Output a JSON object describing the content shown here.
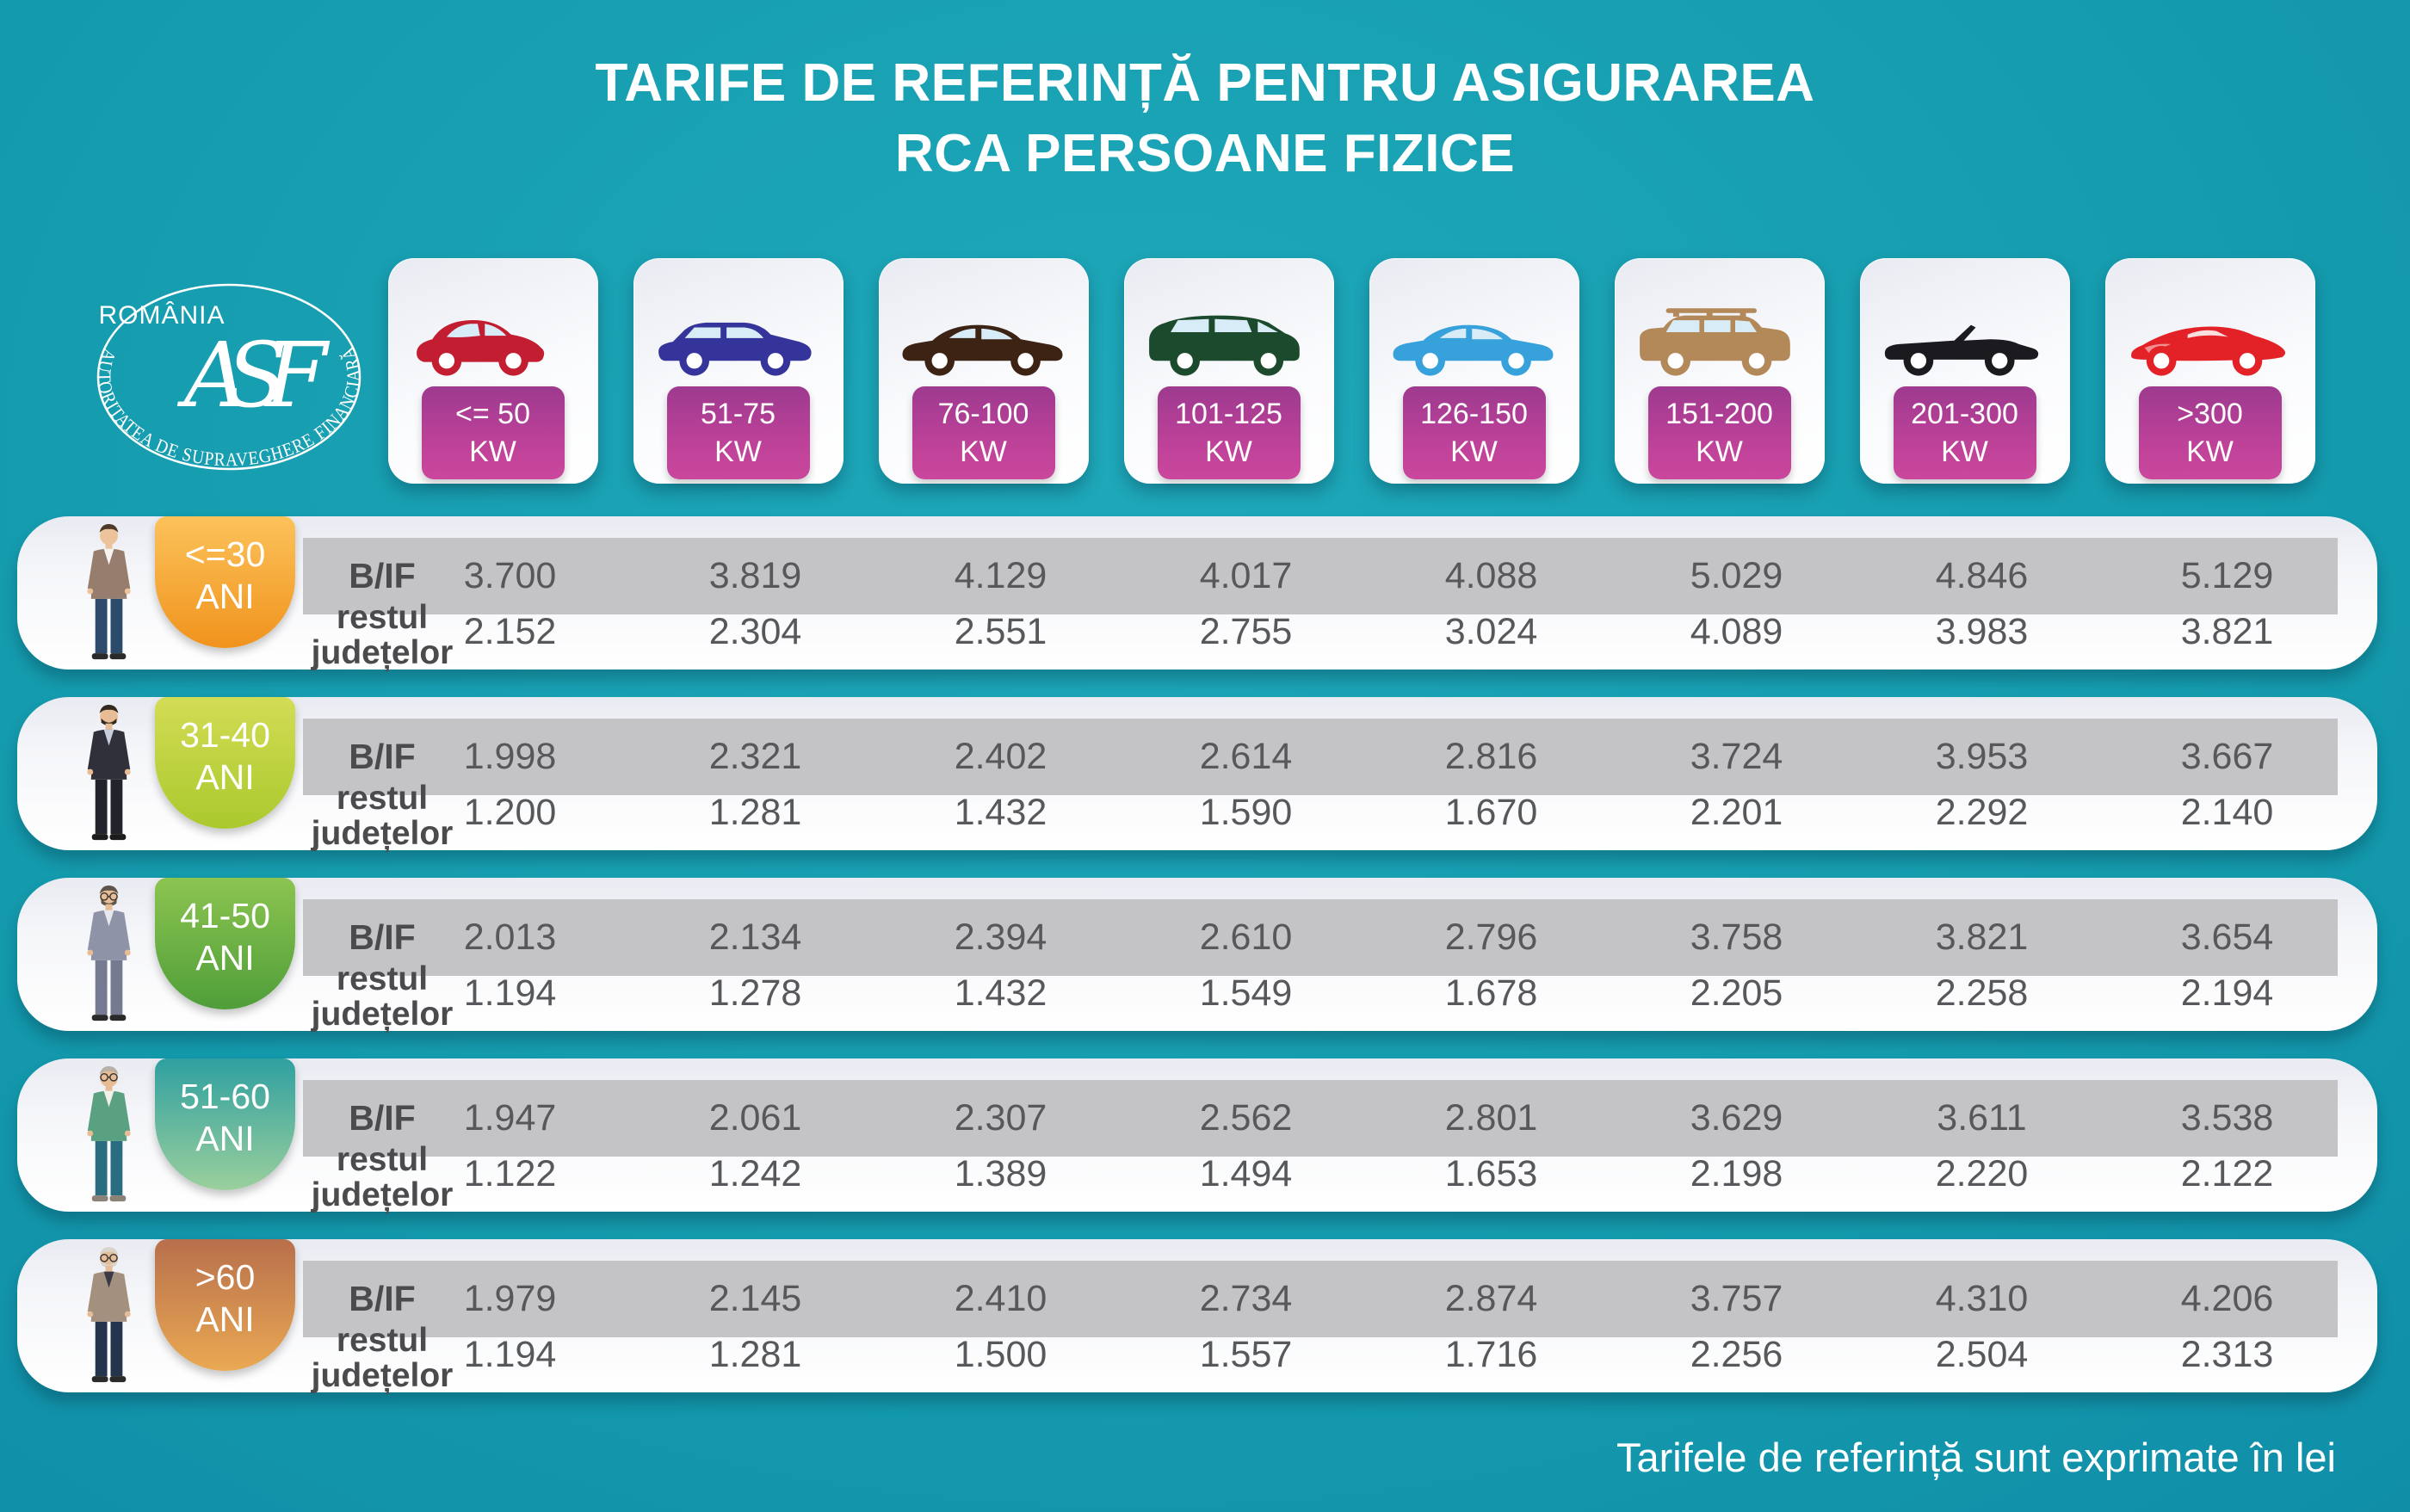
{
  "title": {
    "line1": "TARIFE DE REFERINȚĂ PENTRU ASIGURAREA",
    "line2": "RCA PERSOANE FIZICE"
  },
  "logo": {
    "country": "ROMÂNIA",
    "monogram": "ASF",
    "ring_text": "AUTORITATEA DE SUPRAVEGHERE FINANCIARĂ"
  },
  "columns": [
    {
      "power": "<= 50",
      "unit": "KW",
      "car_icon": "city-car-icon",
      "car_color": "#c21d30"
    },
    {
      "power": "51-75",
      "unit": "KW",
      "car_icon": "crossover-icon",
      "car_color": "#34349b"
    },
    {
      "power": "76-100",
      "unit": "KW",
      "car_icon": "sedan-icon",
      "car_color": "#3c2314"
    },
    {
      "power": "101-125",
      "unit": "KW",
      "car_icon": "minivan-icon",
      "car_color": "#1c4a2c"
    },
    {
      "power": "126-150",
      "unit": "KW",
      "car_icon": "sedan-icon",
      "car_color": "#37a1dc"
    },
    {
      "power": "151-200",
      "unit": "KW",
      "car_icon": "suv-icon",
      "car_color": "#b3895a"
    },
    {
      "power": "201-300",
      "unit": "KW",
      "car_icon": "convertible-icon",
      "car_color": "#1b1b1f"
    },
    {
      "power": ">300",
      "unit": "KW",
      "car_icon": "sports-car-icon",
      "car_color": "#e32227"
    }
  ],
  "row_labels": {
    "bif": "B/IF",
    "rest_line1": "restul",
    "rest_line2": "județelor"
  },
  "age_groups": [
    {
      "age": "<=30",
      "unit": "ANI",
      "person_icon": "young-man-icon",
      "bubble_colors": [
        "#fcc25a",
        "#f0931d"
      ],
      "bif": [
        "3.700",
        "3.819",
        "4.129",
        "4.017",
        "4.088",
        "5.029",
        "4.846",
        "5.129"
      ],
      "rest": [
        "2.152",
        "2.304",
        "2.551",
        "2.755",
        "3.024",
        "4.089",
        "3.983",
        "3.821"
      ]
    },
    {
      "age": "31-40",
      "unit": "ANI",
      "person_icon": "adult-man-icon",
      "bubble_colors": [
        "#d3dc55",
        "#aac92d"
      ],
      "bif": [
        "1.998",
        "2.321",
        "2.402",
        "2.614",
        "2.816",
        "3.724",
        "3.953",
        "3.667"
      ],
      "rest": [
        "1.200",
        "1.281",
        "1.432",
        "1.590",
        "1.670",
        "2.201",
        "2.292",
        "2.140"
      ]
    },
    {
      "age": "41-50",
      "unit": "ANI",
      "person_icon": "middle-aged-man-icon",
      "bubble_colors": [
        "#8cc450",
        "#4f9e39"
      ],
      "bif": [
        "2.013",
        "2.134",
        "2.394",
        "2.610",
        "2.796",
        "3.758",
        "3.821",
        "3.654"
      ],
      "rest": [
        "1.194",
        "1.278",
        "1.432",
        "1.549",
        "1.678",
        "2.205",
        "2.258",
        "2.194"
      ]
    },
    {
      "age": "51-60",
      "unit": "ANI",
      "person_icon": "senior-man-icon",
      "bubble_colors": [
        "#2fa0a0",
        "#9bcf9d"
      ],
      "bif": [
        "1.947",
        "2.061",
        "2.307",
        "2.562",
        "2.801",
        "3.629",
        "3.611",
        "3.538"
      ],
      "rest": [
        "1.122",
        "1.242",
        "1.389",
        "1.494",
        "1.653",
        "2.198",
        "2.220",
        "2.122"
      ]
    },
    {
      "age": ">60",
      "unit": "ANI",
      "person_icon": "elderly-man-icon",
      "bubble_colors": [
        "#b86f4c",
        "#eaa953"
      ],
      "bif": [
        "1.979",
        "2.145",
        "2.410",
        "2.734",
        "2.874",
        "3.757",
        "4.310",
        "4.206"
      ],
      "rest": [
        "1.194",
        "1.281",
        "1.500",
        "1.557",
        "1.716",
        "2.256",
        "2.504",
        "2.313"
      ]
    }
  ],
  "footnote": "Tarifele de referință sunt exprimate în lei",
  "chart_data": {
    "type": "table",
    "title": "TARIFE DE REFERINȚĂ PENTRU ASIGURAREA RCA PERSOANE FIZICE",
    "unit_note": "Tarifele de referință sunt exprimate în lei",
    "columns_kw": [
      "<= 50 KW",
      "51-75 KW",
      "76-100 KW",
      "101-125 KW",
      "126-150 KW",
      "151-200 KW",
      "201-300 KW",
      ">300 KW"
    ],
    "rows": [
      {
        "age": "<=30 ANI",
        "zone": "B/IF",
        "values": [
          3700,
          3819,
          4129,
          4017,
          4088,
          5029,
          4846,
          5129
        ]
      },
      {
        "age": "<=30 ANI",
        "zone": "restul județelor",
        "values": [
          2152,
          2304,
          2551,
          2755,
          3024,
          4089,
          3983,
          3821
        ]
      },
      {
        "age": "31-40 ANI",
        "zone": "B/IF",
        "values": [
          1998,
          2321,
          2402,
          2614,
          2816,
          3724,
          3953,
          3667
        ]
      },
      {
        "age": "31-40 ANI",
        "zone": "restul județelor",
        "values": [
          1200,
          1281,
          1432,
          1590,
          1670,
          2201,
          2292,
          2140
        ]
      },
      {
        "age": "41-50 ANI",
        "zone": "B/IF",
        "values": [
          2013,
          2134,
          2394,
          2610,
          2796,
          3758,
          3821,
          3654
        ]
      },
      {
        "age": "41-50 ANI",
        "zone": "restul județelor",
        "values": [
          1194,
          1278,
          1432,
          1549,
          1678,
          2205,
          2258,
          2194
        ]
      },
      {
        "age": "51-60 ANI",
        "zone": "B/IF",
        "values": [
          1947,
          2061,
          2307,
          2562,
          2801,
          3629,
          3611,
          3538
        ]
      },
      {
        "age": "51-60 ANI",
        "zone": "restul județelor",
        "values": [
          1122,
          1242,
          1389,
          1494,
          1653,
          2198,
          2220,
          2122
        ]
      },
      {
        "age": ">60 ANI",
        "zone": "B/IF",
        "values": [
          1979,
          2145,
          2410,
          2734,
          2874,
          3757,
          4310,
          4206
        ]
      },
      {
        "age": ">60 ANI",
        "zone": "restul județelor",
        "values": [
          1194,
          1281,
          1500,
          1557,
          1716,
          2256,
          2504,
          2313
        ]
      }
    ]
  }
}
